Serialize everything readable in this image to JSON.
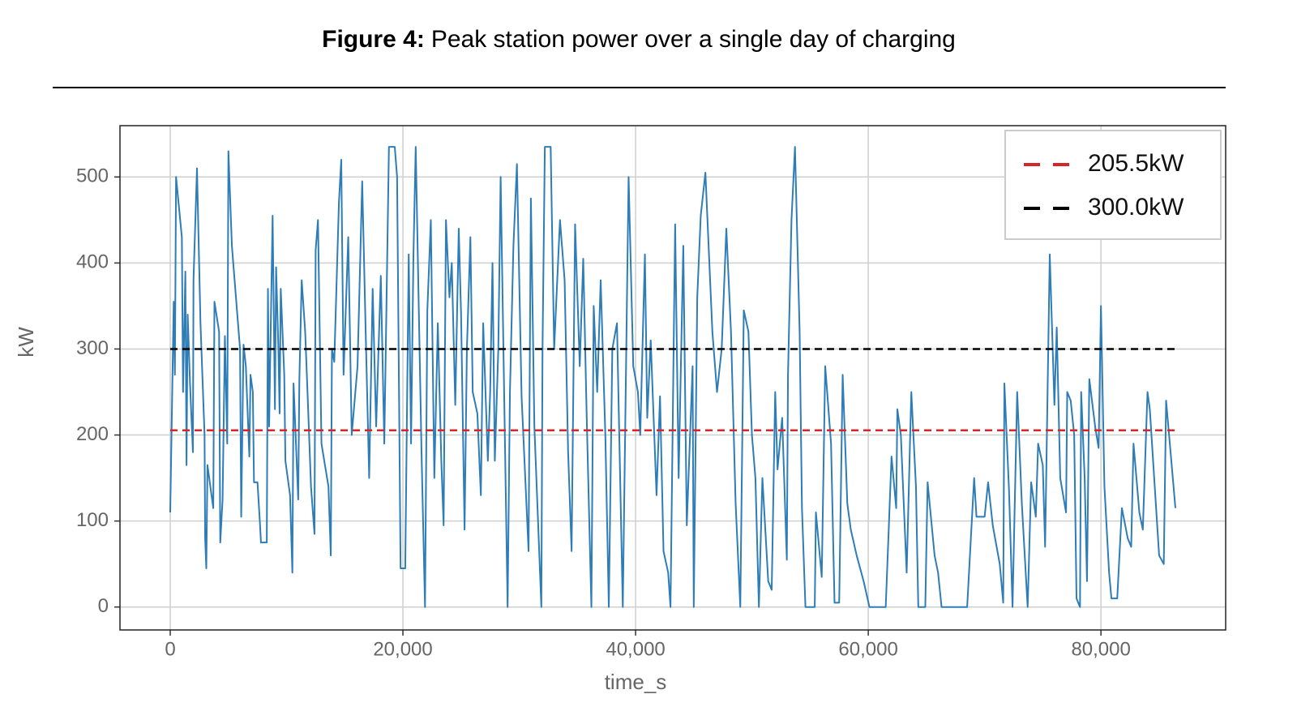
{
  "chart_data": {
    "type": "line",
    "title_label": "Figure 4:",
    "title": "Peak station power over a single day of charging",
    "xlabel": "time_s",
    "ylabel": "kW",
    "xlim": [
      -4320,
      90720
    ],
    "ylim": [
      -26.65,
      559.65
    ],
    "xticks": [
      0,
      {
        "value": 20000,
        "label": "20,000"
      },
      {
        "value": 40000,
        "label": "40,000"
      },
      {
        "value": 60000,
        "label": "60,000"
      },
      {
        "value": 80000,
        "label": "80,000"
      }
    ],
    "yticks": [
      0,
      100,
      200,
      300,
      400,
      500
    ],
    "grid": true,
    "legend": "upper right",
    "series": [
      {
        "color": "#2f7db6",
        "linestyle": "-",
        "x": [
          0,
          300,
          400,
          500,
          1000,
          1100,
          1300,
          1400,
          1500,
          1700,
          1950,
          2000,
          2300,
          2600,
          2950,
          3000,
          3100,
          3200,
          3700,
          3800,
          4200,
          4300,
          4500,
          4700,
          4900,
          5000,
          5300,
          6000,
          6100,
          6300,
          6500,
          6800,
          6900,
          7100,
          7200,
          7500,
          7700,
          7800,
          8300,
          8400,
          8500,
          8800,
          9000,
          9100,
          9300,
          9400,
          9500,
          9800,
          9900,
          10300,
          10500,
          10600,
          11000,
          11100,
          11300,
          11600,
          11800,
          12100,
          12400,
          12500,
          12700,
          13000,
          13600,
          13800,
          13900,
          14100,
          14500,
          14700,
          14900,
          15300,
          15600,
          16100,
          16500,
          16800,
          17100,
          17400,
          17700,
          18100,
          18400,
          18800,
          19300,
          19500,
          19800,
          20200,
          20500,
          20700,
          20900,
          21100,
          21600,
          21900,
          22100,
          22400,
          22700,
          23000,
          23300,
          23500,
          23700,
          24000,
          24200,
          24500,
          24800,
          25000,
          25300,
          25500,
          25800,
          26000,
          26400,
          26700,
          26900,
          27300,
          27500,
          27700,
          27900,
          28200,
          28400,
          28700,
          29000,
          29200,
          29500,
          29800,
          30200,
          30800,
          31000,
          31300,
          31900,
          32000,
          32200,
          32700,
          33000,
          33500,
          33900,
          34200,
          34500,
          34800,
          35200,
          35500,
          35800,
          36200,
          36400,
          36700,
          37000,
          37400,
          37700,
          38000,
          38400,
          38900,
          39400,
          39800,
          40200,
          40400,
          40800,
          41000,
          41300,
          41800,
          42100,
          42400,
          42800,
          43000,
          43400,
          43700,
          44100,
          44400,
          44900,
          45000,
          45300,
          45600,
          46000,
          46600,
          47000,
          47400,
          47800,
          48200,
          48600,
          49000,
          49300,
          49700,
          50000,
          50300,
          50600,
          50900,
          51400,
          51700,
          52000,
          52200,
          52600,
          53000,
          53100,
          53400,
          53700,
          54100,
          54300,
          54600,
          55400,
          55500,
          55900,
          56000,
          56300,
          56800,
          57100,
          57500,
          57800,
          58200,
          58500,
          59000,
          59600,
          60100,
          61500,
          62000,
          62400,
          62500,
          62800,
          63300,
          63700,
          64100,
          64300,
          64900,
          65100,
          65700,
          66000,
          66300,
          68500,
          69100,
          69300,
          70000,
          70300,
          70700,
          71300,
          71600,
          71700,
          72100,
          72400,
          72800,
          73200,
          73700,
          74000,
          74400,
          74600,
          75000,
          75200,
          75600,
          76000,
          76200,
          76500,
          77000,
          77100,
          77400,
          77700,
          77900,
          78200,
          78300,
          78600,
          78800,
          79000,
          79500,
          79800,
          80000,
          80300,
          80700,
          80900,
          81400,
          81800,
          82300,
          82600,
          82800,
          83300,
          83600,
          84000,
          84200,
          85000,
          85400,
          85600,
          86400
        ],
        "values": [
          110,
          355,
          270,
          500,
          430,
          250,
          390,
          165,
          340,
          260,
          180,
          380,
          510,
          330,
          200,
          80,
          45,
          165,
          115,
          355,
          320,
          75,
          125,
          315,
          190,
          530,
          420,
          300,
          105,
          305,
          280,
          175,
          270,
          250,
          145,
          145,
          100,
          75,
          75,
          370,
          210,
          455,
          230,
          395,
          300,
          225,
          370,
          270,
          170,
          130,
          40,
          260,
          125,
          265,
          380,
          320,
          250,
          140,
          85,
          415,
          450,
          190,
          140,
          60,
          300,
          285,
          470,
          520,
          270,
          430,
          200,
          280,
          495,
          320,
          150,
          370,
          210,
          385,
          190,
          535,
          535,
          500,
          45,
          45,
          410,
          190,
          405,
          535,
          180,
          0,
          345,
          450,
          150,
          330,
          170,
          95,
          450,
          360,
          400,
          235,
          440,
          340,
          90,
          300,
          430,
          250,
          225,
          130,
          330,
          170,
          250,
          400,
          170,
          300,
          500,
          250,
          0,
          250,
          420,
          515,
          245,
          65,
          475,
          210,
          0,
          300,
          535,
          535,
          300,
          450,
          380,
          180,
          65,
          445,
          280,
          405,
          220,
          0,
          350,
          250,
          380,
          200,
          0,
          300,
          330,
          0,
          500,
          280,
          250,
          200,
          410,
          220,
          310,
          130,
          245,
          65,
          40,
          0,
          445,
          150,
          420,
          95,
          280,
          0,
          360,
          455,
          505,
          320,
          250,
          300,
          440,
          320,
          120,
          0,
          345,
          320,
          200,
          150,
          0,
          150,
          30,
          20,
          250,
          160,
          220,
          55,
          270,
          450,
          535,
          320,
          115,
          0,
          0,
          110,
          50,
          35,
          280,
          190,
          5,
          5,
          270,
          120,
          90,
          60,
          30,
          0,
          0,
          175,
          115,
          230,
          200,
          40,
          250,
          140,
          0,
          0,
          145,
          60,
          40,
          0,
          0,
          150,
          105,
          105,
          145,
          95,
          50,
          5,
          260,
          135,
          0,
          250,
          120,
          0,
          145,
          105,
          190,
          165,
          70,
          410,
          235,
          325,
          150,
          110,
          250,
          240,
          200,
          10,
          0,
          250,
          150,
          30,
          265,
          210,
          185,
          350,
          140,
          40,
          10,
          10,
          115,
          80,
          70,
          190,
          110,
          90,
          250,
          230,
          60,
          50,
          240,
          115
        ]
      },
      {
        "name": "205.5kW",
        "color": "#d62728",
        "linestyle": "--",
        "x": [
          0,
          86400
        ],
        "values": [
          205.5,
          205.5
        ]
      },
      {
        "name": "300.0kW",
        "color": "#000000",
        "linestyle": "--",
        "x": [
          0,
          86400
        ],
        "values": [
          300.0,
          300.0
        ]
      }
    ]
  }
}
